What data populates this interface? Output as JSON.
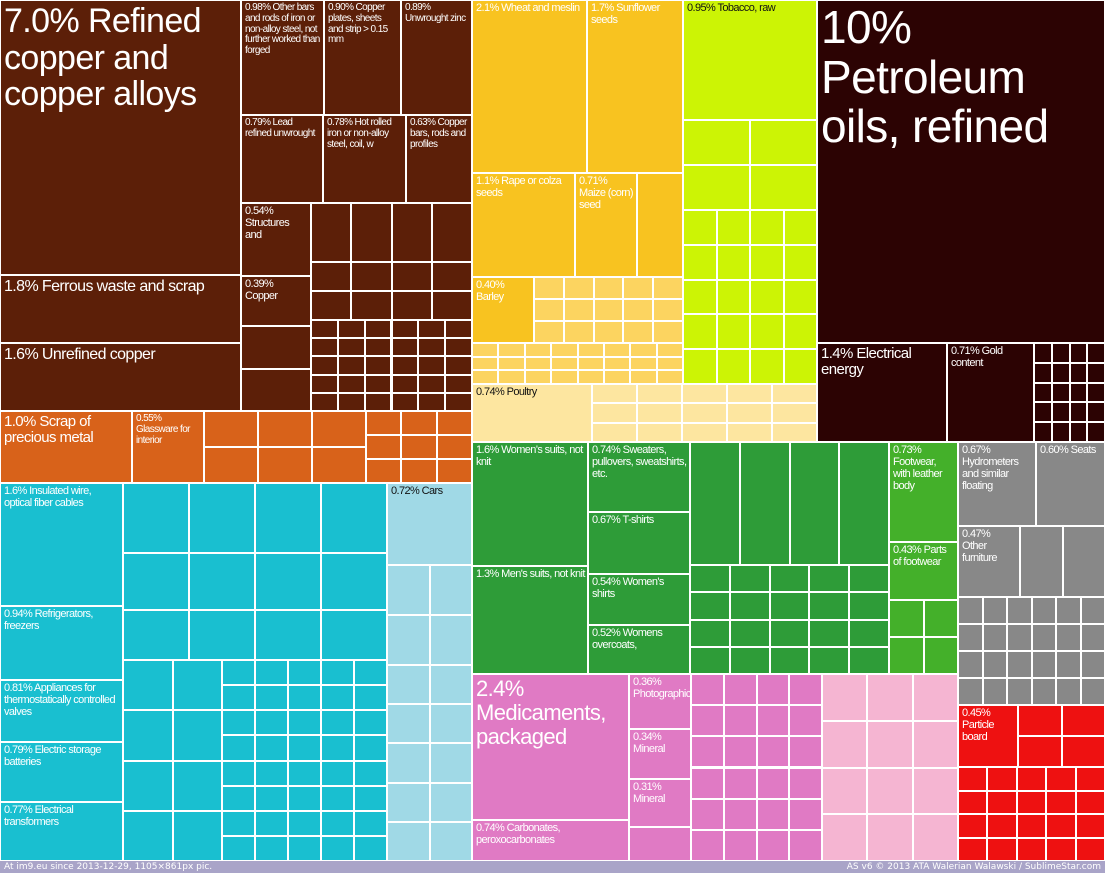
{
  "footer": {
    "left": "At im9.eu  since 2013-12-29, 1105×861px pic.",
    "right": "AS v6 © 2013 ATA Walerian Walawski / SublimeStar.com"
  },
  "chart_data": {
    "type": "treemap",
    "value_unit": "% of exports",
    "colors": {
      "metals": "#5c1f08",
      "metals_secondary": "#d8621a",
      "machinery": "#19bfd0",
      "transport": "#a0d9e6",
      "vegetable_products": "#f8c320",
      "vegetable_products_light": "#fcd460",
      "animal_products": "#fde6a0",
      "vegetable_products_tobacco": "#ccf405",
      "mineral_products": "#2c0303",
      "textiles": "#2e9c38",
      "footwear": "#44b02a",
      "chemicals": "#e07ac4",
      "chemicals_light": "#f5b5d2",
      "miscellaneous": "#888888",
      "wood_products": "#ee1111"
    },
    "items": [
      {
        "label": "7.0% Refined copper and copper alloys",
        "value": 7.0,
        "group": "metals"
      },
      {
        "label": "0.98% Other bars and rods of iron or non-alloy steel, not further worked than forged",
        "value": 0.98,
        "group": "metals"
      },
      {
        "label": "0.90% Copper plates, sheets and strip > 0.15 mm",
        "value": 0.9,
        "group": "metals"
      },
      {
        "label": "0.89% Unwrought zinc",
        "value": 0.89,
        "group": "metals"
      },
      {
        "label": "0.79% Lead refined unwrought",
        "value": 0.79,
        "group": "metals"
      },
      {
        "label": "0.78% Hot rolled iron or non-alloy steel, coil, w",
        "value": 0.78,
        "group": "metals"
      },
      {
        "label": "0.63% Copper bars, rods and profiles",
        "value": 0.63,
        "group": "metals"
      },
      {
        "label": "0.54% Structures and",
        "value": 0.54,
        "group": "metals"
      },
      {
        "label": "0.39% Copper",
        "value": 0.39,
        "group": "metals"
      },
      {
        "label": "1.8% Ferrous waste and scrap",
        "value": 1.8,
        "group": "metals"
      },
      {
        "label": "1.6% Unrefined copper",
        "value": 1.6,
        "group": "metals"
      },
      {
        "label": "1.0% Scrap of precious metal",
        "value": 1.0,
        "group": "metals_secondary"
      },
      {
        "label": "0.55% Glassware for interior",
        "value": 0.55,
        "group": "metals_secondary"
      },
      {
        "label": "1.6% Insulated wire, optical fiber cables",
        "value": 1.6,
        "group": "machinery"
      },
      {
        "label": "0.94% Refrigerators, freezers",
        "value": 0.94,
        "group": "machinery"
      },
      {
        "label": "0.81% Appliances for thermostatically controlled valves",
        "value": 0.81,
        "group": "machinery"
      },
      {
        "label": "0.79% Electric storage batteries",
        "value": 0.79,
        "group": "machinery"
      },
      {
        "label": "0.77% Electrical transformers",
        "value": 0.77,
        "group": "machinery"
      },
      {
        "label": "0.72% Cars",
        "value": 0.72,
        "group": "transport"
      },
      {
        "label": "2.1% Wheat and meslin",
        "value": 2.1,
        "group": "vegetable_products"
      },
      {
        "label": "1.7% Sunflower seeds",
        "value": 1.7,
        "group": "vegetable_products"
      },
      {
        "label": "1.1% Rape or colza seeds",
        "value": 1.1,
        "group": "vegetable_products"
      },
      {
        "label": "0.71% Maize (corn) seed",
        "value": 0.71,
        "group": "vegetable_products"
      },
      {
        "label": "0.40% Barley",
        "value": 0.4,
        "group": "vegetable_products"
      },
      {
        "label": "0.95% Tobacco, raw",
        "value": 0.95,
        "group": "vegetable_products_tobacco"
      },
      {
        "label": "0.74% Poultry",
        "value": 0.74,
        "group": "animal_products"
      },
      {
        "label": "10% Petroleum oils, refined",
        "value": 10,
        "group": "mineral_products"
      },
      {
        "label": "1.4% Electrical energy",
        "value": 1.4,
        "group": "mineral_products"
      },
      {
        "label": "0.71% Gold content",
        "value": 0.71,
        "group": "mineral_products"
      },
      {
        "label": "1.6% Women's suits, not knit",
        "value": 1.6,
        "group": "textiles"
      },
      {
        "label": "0.74% Sweaters, pullovers, sweatshirts, etc.",
        "value": 0.74,
        "group": "textiles"
      },
      {
        "label": "0.67% T-shirts",
        "value": 0.67,
        "group": "textiles"
      },
      {
        "label": "1.3% Men's suits, not knit",
        "value": 1.3,
        "group": "textiles"
      },
      {
        "label": "0.54% Women's shirts",
        "value": 0.54,
        "group": "textiles"
      },
      {
        "label": "0.52% Womens overcoats,",
        "value": 0.52,
        "group": "textiles"
      },
      {
        "label": "0.73% Footwear, with leather body",
        "value": 0.73,
        "group": "footwear"
      },
      {
        "label": "0.43% Parts of footwear",
        "value": 0.43,
        "group": "footwear"
      },
      {
        "label": "0.67% Hydrometers and similar floating",
        "value": 0.67,
        "group": "miscellaneous"
      },
      {
        "label": "0.60% Seats",
        "value": 0.6,
        "group": "miscellaneous"
      },
      {
        "label": "0.47% Other furniture",
        "value": 0.47,
        "group": "miscellaneous"
      },
      {
        "label": "2.4% Medicaments, packaged",
        "value": 2.4,
        "group": "chemicals"
      },
      {
        "label": "0.36% Photographic",
        "value": 0.36,
        "group": "chemicals"
      },
      {
        "label": "0.34% Mineral",
        "value": 0.34,
        "group": "chemicals"
      },
      {
        "label": "0.31% Mineral",
        "value": 0.31,
        "group": "chemicals"
      },
      {
        "label": "0.74% Carbonates, peroxocarbonates",
        "value": 0.74,
        "group": "chemicals"
      },
      {
        "label": "0.45% Particle board",
        "value": 0.45,
        "group": "wood_products"
      }
    ]
  }
}
